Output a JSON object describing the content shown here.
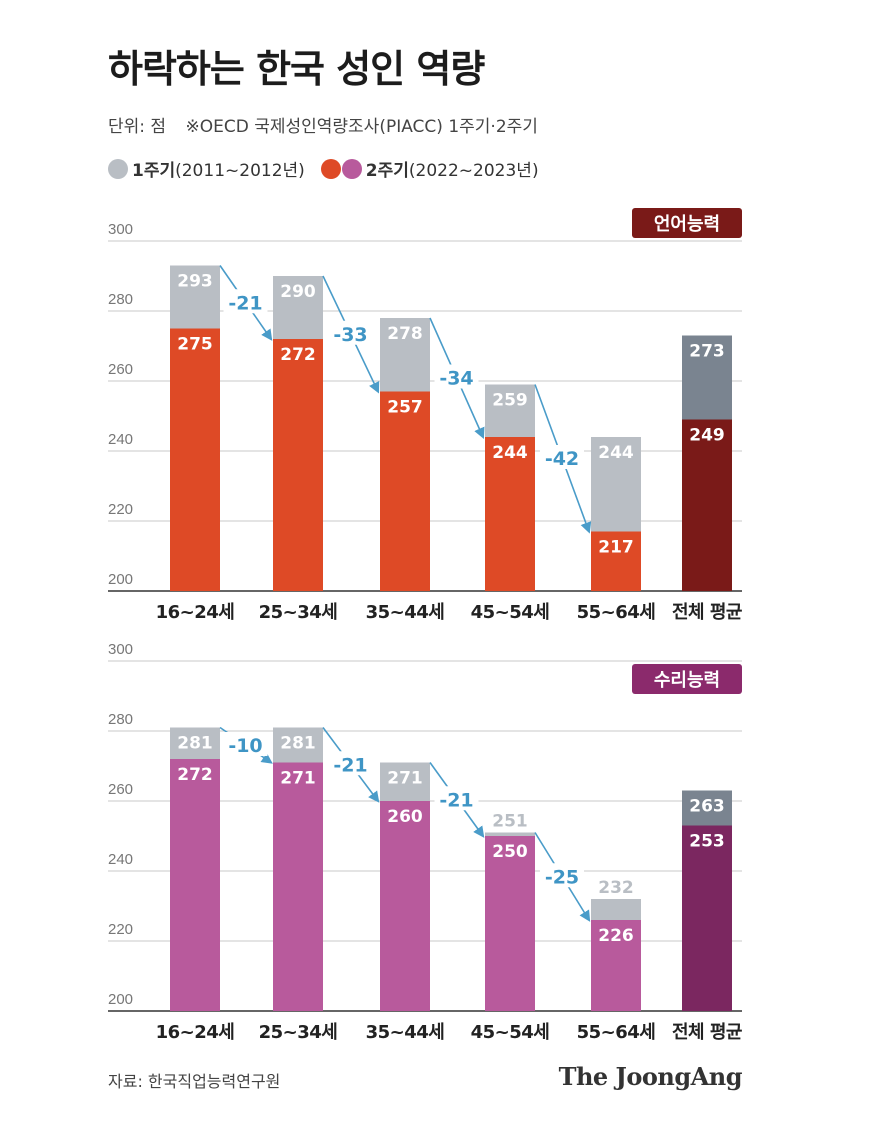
{
  "title": "하락하는 한국 성인 역량",
  "subtitle": {
    "unit": "단위: 점",
    "note": "※OECD 국제성인역량조사(PIACC) 1주기·2주기"
  },
  "legend": {
    "cycle1_label": "1주기",
    "cycle1_period": "(2011~2012년)",
    "cycle2_label": "2주기",
    "cycle2_period": "(2022~2023년)",
    "colors": {
      "cycle1": "#b9bec4",
      "cycle2_literacy": "#de4a26",
      "cycle2_numeracy": "#b85a9c"
    }
  },
  "chart_data": [
    {
      "type": "bar",
      "panel_label": "언어능력",
      "categories": [
        "16~24세",
        "25~34세",
        "35~44세",
        "45~54세",
        "55~64세",
        "전체 평균"
      ],
      "ylim": [
        200,
        300
      ],
      "yticks": [
        200,
        220,
        240,
        260,
        280,
        300
      ],
      "series": [
        {
          "name": "1주기",
          "values": [
            293,
            290,
            278,
            259,
            244,
            273
          ]
        },
        {
          "name": "2주기",
          "values": [
            275,
            272,
            257,
            244,
            217,
            249
          ]
        }
      ],
      "differences": [
        "-21",
        "-33",
        "-34",
        "-42"
      ],
      "colors": {
        "cycle1": "#b9bec4",
        "cycle2": "#de4a26",
        "avg_cycle1": "#7a8490",
        "avg_cycle2": "#7a1a18",
        "panel_label_bg": "#7a1a18"
      }
    },
    {
      "type": "bar",
      "panel_label": "수리능력",
      "categories": [
        "16~24세",
        "25~34세",
        "35~44세",
        "45~54세",
        "55~64세",
        "전체 평균"
      ],
      "ylim": [
        200,
        300
      ],
      "yticks": [
        200,
        220,
        240,
        260,
        280,
        300
      ],
      "series": [
        {
          "name": "1주기",
          "values": [
            281,
            281,
            271,
            251,
            232,
            263
          ]
        },
        {
          "name": "2주기",
          "values": [
            272,
            271,
            260,
            250,
            226,
            253
          ]
        }
      ],
      "differences": [
        "-10",
        "-21",
        "-21",
        "-25"
      ],
      "colors": {
        "cycle1": "#b9bec4",
        "cycle2": "#b85a9c",
        "avg_cycle1": "#7a8490",
        "avg_cycle2": "#7b2760",
        "panel_label_bg": "#8b2a6c"
      }
    }
  ],
  "source": "자료: 한국직업능력연구원",
  "brand": "The JoongAng"
}
